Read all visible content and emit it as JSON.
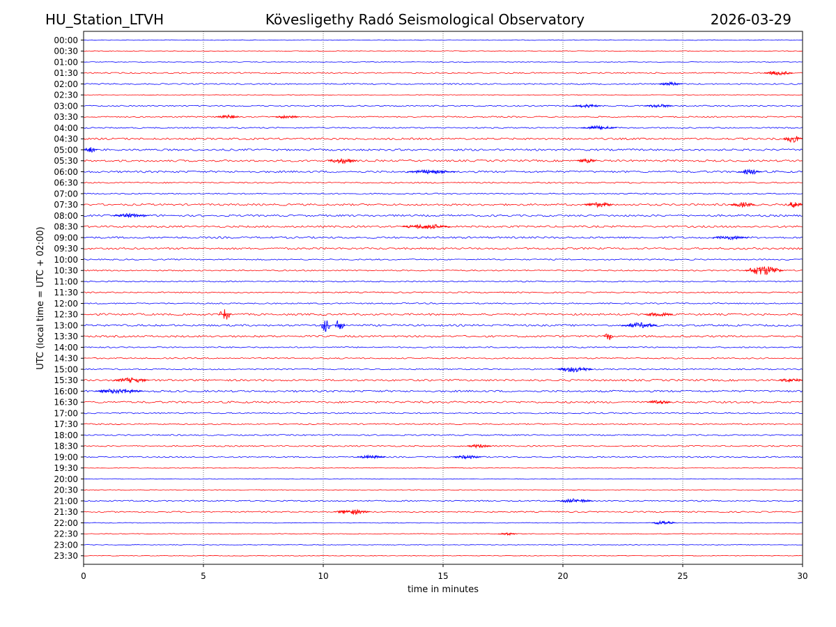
{
  "header": {
    "station": "HU_Station_LTVH",
    "observatory": "Kövesligethy Radó Seismological Observatory",
    "date": "2026-03-29"
  },
  "chart_data": {
    "type": "line",
    "title": "Kövesligethy Radó Seismological Observatory",
    "xlabel": "time in minutes",
    "ylabel": "UTC (local time = UTC + 02:00)",
    "xlim": [
      0,
      30
    ],
    "x_ticks": [
      "0",
      "5",
      "10",
      "15",
      "20",
      "25",
      "30"
    ],
    "x_tick_values": [
      0,
      5,
      10,
      15,
      20,
      25,
      30
    ],
    "grid": "vertical dotted at x ticks",
    "trace_colors": [
      "#0000ff",
      "#ff0000"
    ],
    "row_labels": [
      "00:00",
      "00:30",
      "01:00",
      "01:30",
      "02:00",
      "02:30",
      "03:00",
      "03:30",
      "04:00",
      "04:30",
      "05:00",
      "05:30",
      "06:00",
      "06:30",
      "07:00",
      "07:30",
      "08:00",
      "08:30",
      "09:00",
      "09:30",
      "10:00",
      "10:30",
      "11:00",
      "11:30",
      "12:00",
      "12:30",
      "13:00",
      "13:30",
      "14:00",
      "14:30",
      "15:00",
      "15:30",
      "16:00",
      "16:30",
      "17:00",
      "17:30",
      "18:00",
      "18:30",
      "19:00",
      "19:30",
      "20:00",
      "20:30",
      "21:00",
      "21:30",
      "22:00",
      "22:30",
      "23:00",
      "23:30"
    ],
    "noise_level": [
      1,
      1,
      1,
      2,
      2,
      1,
      2,
      2,
      2,
      3,
      3,
      3,
      3,
      2,
      2,
      3,
      3,
      3,
      3,
      3,
      2,
      2,
      2,
      2,
      2,
      3,
      3,
      3,
      2,
      2,
      2,
      3,
      3,
      3,
      2,
      2,
      2,
      2,
      2,
      1,
      1,
      1,
      2,
      2,
      1,
      1,
      1,
      1
    ],
    "events": [
      {
        "row": "01:30",
        "minute": 29.0,
        "amp": 3,
        "dur": 1.2
      },
      {
        "row": "02:00",
        "minute": 24.5,
        "amp": 2.5,
        "dur": 1.0
      },
      {
        "row": "03:00",
        "minute": 21.0,
        "amp": 2.5,
        "dur": 1.2
      },
      {
        "row": "03:00",
        "minute": 24.0,
        "amp": 2.5,
        "dur": 1.2
      },
      {
        "row": "03:30",
        "minute": 6.0,
        "amp": 3,
        "dur": 1.0
      },
      {
        "row": "03:30",
        "minute": 8.5,
        "amp": 2.5,
        "dur": 1.0
      },
      {
        "row": "04:00",
        "minute": 21.5,
        "amp": 3,
        "dur": 1.5
      },
      {
        "row": "04:30",
        "minute": 29.6,
        "amp": 5,
        "dur": 0.8
      },
      {
        "row": "05:00",
        "minute": 0.3,
        "amp": 4,
        "dur": 0.6
      },
      {
        "row": "05:30",
        "minute": 10.8,
        "amp": 4,
        "dur": 1.2
      },
      {
        "row": "05:30",
        "minute": 21.0,
        "amp": 3,
        "dur": 0.8
      },
      {
        "row": "06:00",
        "minute": 14.5,
        "amp": 3,
        "dur": 2.0
      },
      {
        "row": "06:00",
        "minute": 27.8,
        "amp": 4,
        "dur": 1.0
      },
      {
        "row": "07:30",
        "minute": 21.5,
        "amp": 3.5,
        "dur": 1.2
      },
      {
        "row": "07:30",
        "minute": 27.5,
        "amp": 3.5,
        "dur": 1.0
      },
      {
        "row": "07:30",
        "minute": 29.7,
        "amp": 5,
        "dur": 0.6
      },
      {
        "row": "08:00",
        "minute": 2.0,
        "amp": 3,
        "dur": 1.5
      },
      {
        "row": "08:30",
        "minute": 14.3,
        "amp": 3.5,
        "dur": 2.0
      },
      {
        "row": "09:00",
        "minute": 27.0,
        "amp": 3,
        "dur": 1.5
      },
      {
        "row": "10:30",
        "minute": 28.4,
        "amp": 7,
        "dur": 1.6
      },
      {
        "row": "12:30",
        "minute": 5.9,
        "amp": 9,
        "dur": 0.5
      },
      {
        "row": "12:30",
        "minute": 24.0,
        "amp": 3,
        "dur": 1.2
      },
      {
        "row": "13:00",
        "minute": 10.1,
        "amp": 10,
        "dur": 0.4
      },
      {
        "row": "13:00",
        "minute": 10.7,
        "amp": 10,
        "dur": 0.4
      },
      {
        "row": "13:00",
        "minute": 23.2,
        "amp": 4,
        "dur": 1.5
      },
      {
        "row": "13:30",
        "minute": 21.9,
        "amp": 6,
        "dur": 0.4
      },
      {
        "row": "15:00",
        "minute": 20.5,
        "amp": 4,
        "dur": 1.5
      },
      {
        "row": "15:30",
        "minute": 2.0,
        "amp": 3.5,
        "dur": 1.5
      },
      {
        "row": "15:30",
        "minute": 29.5,
        "amp": 3,
        "dur": 1.0
      },
      {
        "row": "16:00",
        "minute": 1.5,
        "amp": 3.5,
        "dur": 2.0
      },
      {
        "row": "16:30",
        "minute": 24.0,
        "amp": 3,
        "dur": 1.0
      },
      {
        "row": "18:30",
        "minute": 16.5,
        "amp": 2.5,
        "dur": 1.0
      },
      {
        "row": "19:00",
        "minute": 12.0,
        "amp": 2.5,
        "dur": 1.2
      },
      {
        "row": "19:00",
        "minute": 16.0,
        "amp": 2.5,
        "dur": 1.2
      },
      {
        "row": "21:00",
        "minute": 20.5,
        "amp": 3,
        "dur": 1.5
      },
      {
        "row": "21:30",
        "minute": 11.2,
        "amp": 3.5,
        "dur": 1.5
      },
      {
        "row": "22:00",
        "minute": 24.2,
        "amp": 3,
        "dur": 1.0
      },
      {
        "row": "22:30",
        "minute": 17.7,
        "amp": 2,
        "dur": 0.8
      }
    ]
  }
}
